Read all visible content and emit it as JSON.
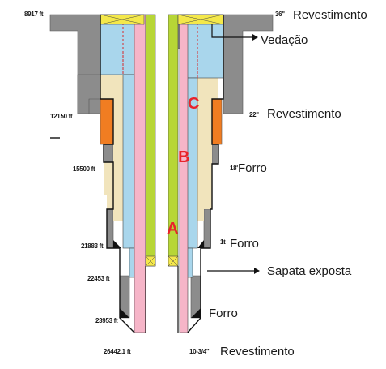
{
  "depths": [
    "8917 ft",
    "12150 ft",
    "15500 ft",
    "21883 ft",
    "22453 ft",
    "23953 ft",
    "26442,1 ft"
  ],
  "sizes": [
    "36\"",
    "22\"",
    "18'",
    "1t",
    "10-3/4\""
  ],
  "labels": {
    "revestimento_36": "Revestimento",
    "vedacao": "Vedação",
    "revestimento_22": "Revestimento",
    "forro_18": "Forro",
    "forro_16": "Forro",
    "sapata": "Sapata exposta",
    "forro_low": "Forro",
    "revestimento_bottom": "Revestimento"
  },
  "zones": [
    "C",
    "B",
    "A"
  ],
  "colors": {
    "formation": "#8c8c8c",
    "cement_blue": "#a9d6ec",
    "cement_beige": "#f1e4bc",
    "orange": "#f07d22",
    "pink": "#f6b5c8",
    "green": "#b7d636",
    "seal": "#f4e84a",
    "zone_text": "#e8222a"
  }
}
